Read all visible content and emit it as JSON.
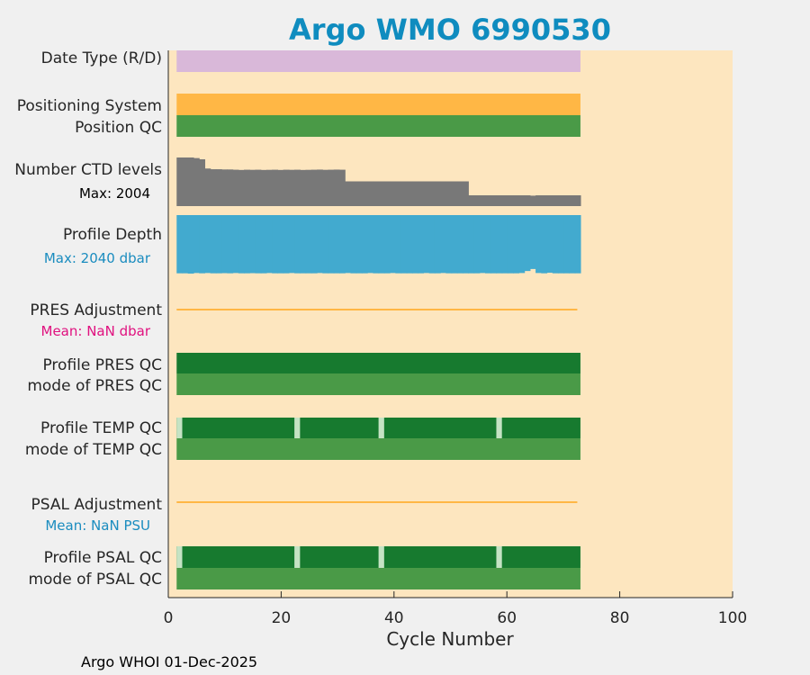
{
  "chart_data": {
    "type": "bar",
    "title": "Argo WMO 6990530",
    "xlabel": "Cycle Number",
    "xlim": [
      0,
      100
    ],
    "x_ticks": [
      "0",
      "20",
      "40",
      "60",
      "80",
      "100"
    ],
    "cycles_range": [
      1,
      72
    ],
    "footer": "Argo WHOI 01-Dec-2025",
    "rows": [
      {
        "label": "Date Type (R/D)",
        "color": "#d9b8d9",
        "kind": "full"
      },
      {
        "label": "Positioning System",
        "color": "#ffb745",
        "kind": "full"
      },
      {
        "label": "Position QC",
        "color": "#4a9a47",
        "kind": "full"
      },
      {
        "label": "Number CTD levels",
        "sub": "Max: 2004",
        "sub_color": "#000000",
        "color": "#787878",
        "kind": "levels",
        "max": 2004
      },
      {
        "label": "Profile Depth",
        "sub": "Max: 2040 dbar",
        "sub_color": "#1a8cbf",
        "color": "#42aacf",
        "kind": "depth",
        "max": 2040
      },
      {
        "label": "PRES Adjustment",
        "sub": "Mean:  NaN dbar",
        "sub_color": "#e0117f",
        "color": "#ffb745",
        "kind": "line"
      },
      {
        "label": "Profile PRES QC",
        "color": "#177a2f",
        "kind": "full"
      },
      {
        "label": "mode of PRES QC",
        "color": "#4a9a47",
        "kind": "full"
      },
      {
        "label": "Profile TEMP QC",
        "color": "#177a2f",
        "gap_color": "#c5e3c4",
        "kind": "gaps",
        "gap_cycles": [
          1,
          22,
          37,
          58
        ]
      },
      {
        "label": "mode of TEMP QC",
        "color": "#4a9a47",
        "kind": "full"
      },
      {
        "label": "PSAL Adjustment",
        "sub": "Mean:  NaN PSU",
        "sub_color": "#1a8cbf",
        "color": "#ffb745",
        "kind": "line"
      },
      {
        "label": "Profile PSAL QC",
        "color": "#177a2f",
        "gap_color": "#c5e3c4",
        "kind": "gaps",
        "gap_cycles": [
          1,
          22,
          37,
          58
        ]
      },
      {
        "label": "mode of PSAL QC",
        "color": "#4a9a47",
        "kind": "full"
      }
    ],
    "ctd_levels": [
      2004,
      2004,
      2004,
      1980,
      1930,
      1550,
      1520,
      1520,
      1510,
      1510,
      1500,
      1490,
      1500,
      1495,
      1500,
      1490,
      1495,
      1500,
      1490,
      1500,
      1495,
      1500,
      1490,
      1495,
      1500,
      1505,
      1495,
      1500,
      1505,
      1500,
      1020,
      1020,
      1020,
      1020,
      1020,
      1020,
      1020,
      1020,
      1020,
      1020,
      1020,
      1020,
      1020,
      1020,
      1020,
      1020,
      1020,
      1020,
      1020,
      1020,
      1020,
      1020,
      445,
      445,
      445,
      445,
      445,
      445,
      445,
      445,
      445,
      445,
      445,
      430,
      445,
      445,
      445,
      445,
      445,
      445,
      445,
      445
    ],
    "profile_depth": [
      2030,
      2030,
      2040,
      2020,
      2030,
      2020,
      2030,
      2030,
      2025,
      2030,
      2020,
      2030,
      2030,
      2025,
      2030,
      2030,
      2020,
      2030,
      2030,
      2030,
      2020,
      2030,
      2030,
      2030,
      2030,
      2020,
      2030,
      2030,
      2030,
      2030,
      2020,
      2030,
      2030,
      2030,
      2020,
      2030,
      2030,
      2030,
      2020,
      2030,
      2030,
      2030,
      2030,
      2030,
      2020,
      2030,
      2030,
      2020,
      2030,
      2030,
      2030,
      2030,
      2030,
      2030,
      2020,
      2030,
      2030,
      2030,
      2030,
      2030,
      2030,
      2020,
      1950,
      1880,
      2020,
      2030,
      2010,
      2030,
      2030,
      2030,
      2030,
      2030
    ]
  }
}
